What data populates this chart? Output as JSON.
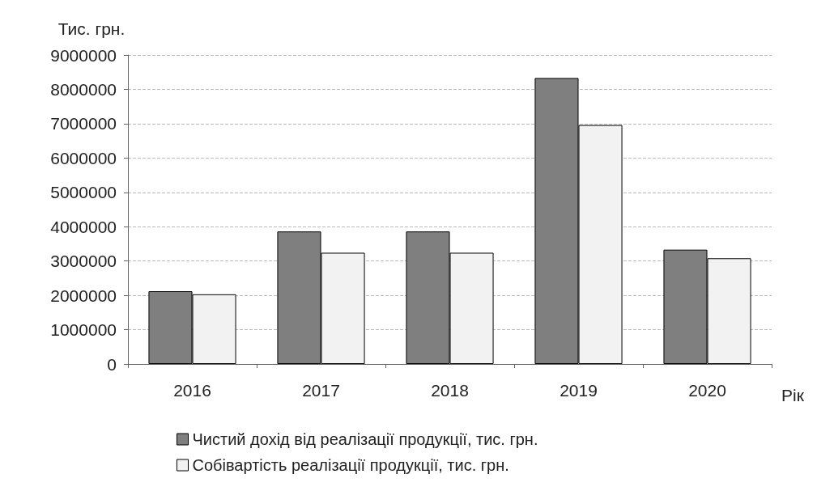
{
  "chart_data": {
    "type": "bar",
    "ylabel": "Тис. грн.",
    "xlabel": "Рік",
    "categories": [
      "2016",
      "2017",
      "2018",
      "2019",
      "2020"
    ],
    "series": [
      {
        "name": "Чистий дохід від реалізації продукції, тис. грн.",
        "color": "#7f7f7f",
        "values": [
          2120000,
          3860000,
          3860000,
          8330000,
          3330000
        ]
      },
      {
        "name": "Собівартість реалізації продукції, тис. грн.",
        "color": "#f2f2f2",
        "values": [
          2030000,
          3240000,
          3240000,
          6960000,
          3080000
        ]
      }
    ],
    "ylim": [
      0,
      9000000
    ],
    "yticks": [
      0,
      1000000,
      2000000,
      3000000,
      4000000,
      5000000,
      6000000,
      7000000,
      8000000,
      9000000
    ],
    "grid": "y",
    "legend": "bottom"
  }
}
